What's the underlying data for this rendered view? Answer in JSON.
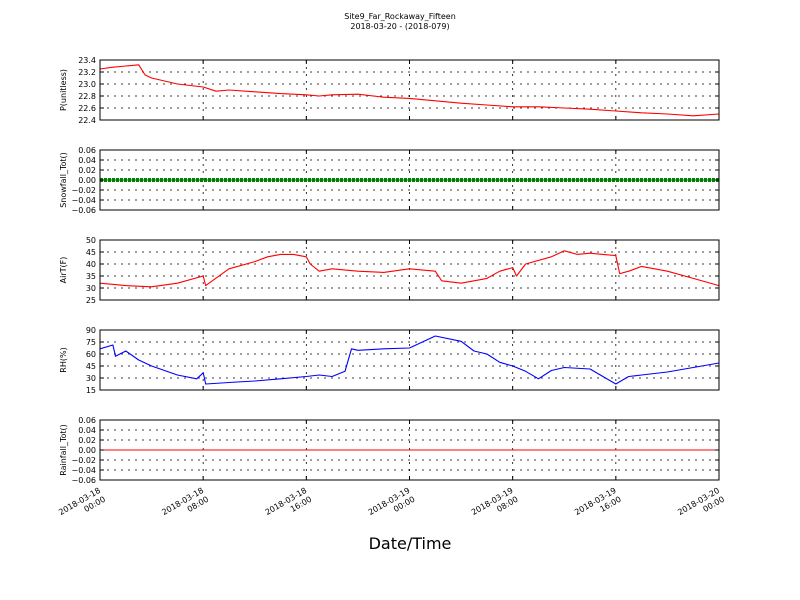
{
  "chart_data": {
    "title": "Site9_Far_Rockaway_Fifteen",
    "subtitle": "2018-03-20 - (2018-079)",
    "xlabel": "Date/Time",
    "x_ticks": [
      [
        "2018-03-18",
        "00:00"
      ],
      [
        "2018-03-18",
        "08:00"
      ],
      [
        "2018-03-18",
        "16:00"
      ],
      [
        "2018-03-19",
        "00:00"
      ],
      [
        "2018-03-19",
        "08:00"
      ],
      [
        "2018-03-19",
        "16:00"
      ],
      [
        "2018-03-20",
        "00:00"
      ]
    ],
    "x_range_hours": [
      0,
      48
    ],
    "grid": true,
    "panels": [
      {
        "type": "line",
        "ylabel": "P(unitless)",
        "ylim": [
          22.4,
          23.4
        ],
        "yticks": [
          "22.4",
          "22.6",
          "22.8",
          "23.0",
          "23.2",
          "23.4"
        ],
        "color": "#ff0000",
        "x_hours": [
          0,
          1,
          2,
          3,
          3.5,
          4,
          6,
          8,
          9,
          10,
          12,
          14,
          16,
          17,
          18,
          20,
          22,
          24,
          26,
          28,
          30,
          32,
          34,
          36,
          38,
          40,
          42,
          44,
          46,
          48
        ],
        "values": [
          23.25,
          23.28,
          23.3,
          23.32,
          23.15,
          23.1,
          23.0,
          22.95,
          22.88,
          22.9,
          22.87,
          22.84,
          22.82,
          22.8,
          22.82,
          22.83,
          22.78,
          22.76,
          22.72,
          22.68,
          22.65,
          22.62,
          22.62,
          22.6,
          22.58,
          22.55,
          22.52,
          22.5,
          22.47,
          22.5
        ]
      },
      {
        "type": "line",
        "ylabel": "Snowfall_Tot()",
        "ylim": [
          -0.06,
          0.06
        ],
        "yticks": [
          "−0.06",
          "−0.04",
          "−0.02",
          "0.00",
          "0.02",
          "0.04",
          "0.06"
        ],
        "color": "#007f00",
        "markers": true,
        "x_hours": [
          0,
          48
        ],
        "values": [
          0.0,
          0.0
        ]
      },
      {
        "type": "line",
        "ylabel": "AirT(F)",
        "ylim": [
          25,
          50
        ],
        "yticks": [
          "25",
          "30",
          "35",
          "40",
          "45",
          "50"
        ],
        "color": "#ff0000",
        "x_hours": [
          0,
          2,
          4,
          6,
          8,
          8.2,
          10,
          12,
          13,
          14,
          15,
          16,
          16.3,
          17,
          18,
          20,
          22,
          24,
          26,
          26.5,
          28,
          30,
          31,
          32,
          32.3,
          33,
          35,
          36,
          37,
          38,
          39,
          40,
          40.3,
          41,
          42,
          44,
          46,
          48
        ],
        "values": [
          32,
          31,
          30.5,
          32,
          35,
          31,
          38,
          41,
          43,
          44,
          44,
          43,
          40,
          37,
          38,
          37,
          36.5,
          38,
          37,
          33,
          32,
          34,
          37,
          38.5,
          35,
          40,
          43,
          45.5,
          44,
          44.5,
          44,
          43.5,
          36,
          37,
          39,
          37,
          34,
          31
        ]
      },
      {
        "type": "line",
        "ylabel": "RH(%)",
        "ylim": [
          10,
          90
        ],
        "yticks": [
          "15",
          "30",
          "45",
          "60",
          "75",
          "90"
        ],
        "color": "#0000ff",
        "x_hours": [
          0,
          1,
          1.2,
          2,
          3,
          4,
          6,
          7.5,
          8,
          8.2,
          10,
          12,
          14,
          16,
          17,
          18,
          19,
          19.5,
          20,
          22,
          24,
          26,
          28,
          29,
          30,
          31,
          32,
          33,
          34,
          35,
          36,
          38,
          39,
          40,
          41,
          42,
          44,
          46,
          48
        ],
        "values": [
          65,
          70,
          55,
          62,
          50,
          42,
          30,
          25,
          33,
          18,
          20,
          22,
          25,
          28,
          30,
          28,
          35,
          65,
          63,
          65,
          66,
          82,
          75,
          62,
          58,
          47,
          42,
          35,
          25,
          36,
          40,
          38,
          28,
          18,
          28,
          30,
          34,
          40,
          46
        ]
      },
      {
        "type": "line",
        "ylabel": "Rainfall_Tot()",
        "ylim": [
          -0.06,
          0.06
        ],
        "yticks": [
          "−0.06",
          "−0.04",
          "−0.02",
          "0.00",
          "0.02",
          "0.04",
          "0.06"
        ],
        "color": "#ff0000",
        "x_hours": [
          0,
          48
        ],
        "values": [
          0.0,
          0.0
        ]
      }
    ]
  }
}
